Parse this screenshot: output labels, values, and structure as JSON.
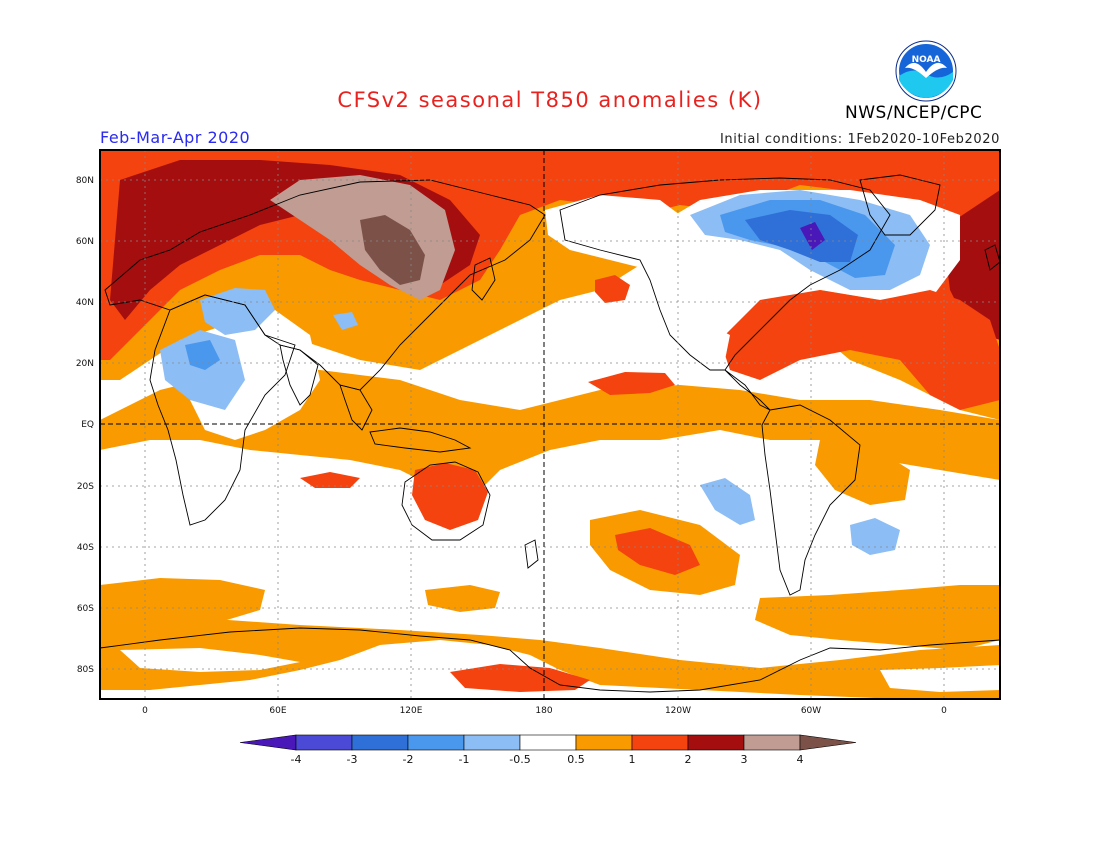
{
  "header": {
    "title": "CFSv2 seasonal T850 anomalies (K)",
    "season": "Feb-Mar-Apr 2020",
    "initial_conditions": "Initial conditions: 1Feb2020-10Feb2020",
    "agency": "NWS/NCEP/CPC",
    "logo_text": "NOAA"
  },
  "axes": {
    "lat_ticks": [
      "80N",
      "60N",
      "40N",
      "20N",
      "EQ",
      "20S",
      "40S",
      "60S",
      "80S"
    ],
    "lon_ticks": [
      "0",
      "60E",
      "120E",
      "180",
      "120W",
      "60W",
      "0"
    ]
  },
  "colorbar": {
    "labels": [
      "-4",
      "-3",
      "-2",
      "-1",
      "-0.5",
      "0.5",
      "1",
      "2",
      "3",
      "4"
    ],
    "colors": [
      "#4a18b8",
      "#4b4ad6",
      "#2f6fd8",
      "#4a97ee",
      "#8cbdf4",
      "#ffffff",
      "#f99b00",
      "#f4430e",
      "#a50e0e",
      "#c09c92",
      "#7c5248"
    ]
  },
  "palette": {
    "title_red": "#e8231f",
    "season_blue": "#2a2af0",
    "orange": "#f99b00",
    "red": "#f4430e",
    "darkred": "#a50e0e",
    "tan": "#c09c92",
    "brown": "#7c5248",
    "lightblue": "#8cbdf4",
    "blue": "#4a97ee",
    "midblue": "#2f6fd8",
    "deepblue": "#4b4ad6",
    "violet": "#4a18b8"
  }
}
